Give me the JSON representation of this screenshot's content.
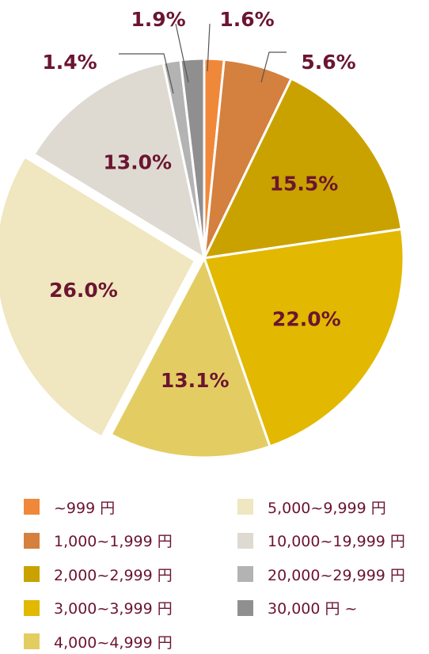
{
  "chart_data": {
    "type": "pie",
    "title": "",
    "label_color": "#6b1530",
    "slices": [
      {
        "category": "~999 円",
        "value": 1.6,
        "label": "1.6%",
        "color": "#f0883a"
      },
      {
        "category": "1,000~1,999 円",
        "value": 5.6,
        "label": "5.6%",
        "color": "#d4803f"
      },
      {
        "category": "2,000~2,999 円",
        "value": 15.5,
        "label": "15.5%",
        "color": "#c9a200"
      },
      {
        "category": "3,000~3,999 円",
        "value": 22.0,
        "label": "22.0%",
        "color": "#e2b800"
      },
      {
        "category": "4,000~4,999 円",
        "value": 13.1,
        "label": "13.1%",
        "color": "#e3cd63"
      },
      {
        "category": "5,000~9,999 円",
        "value": 26.0,
        "label": "26.0%",
        "color": "#f0e6bf",
        "exploded": true
      },
      {
        "category": "10,000~19,999 円",
        "value": 13.0,
        "label": "13.0%",
        "color": "#dedad2"
      },
      {
        "category": "20,000~29,999 円",
        "value": 1.4,
        "label": "1.4%",
        "color": "#b3b3b3"
      },
      {
        "category": "30,000 円 ~",
        "value": 1.9,
        "label": "1.9%",
        "color": "#8f8f8f"
      }
    ],
    "legend": {
      "placement": "bottom",
      "columns": 2
    }
  }
}
